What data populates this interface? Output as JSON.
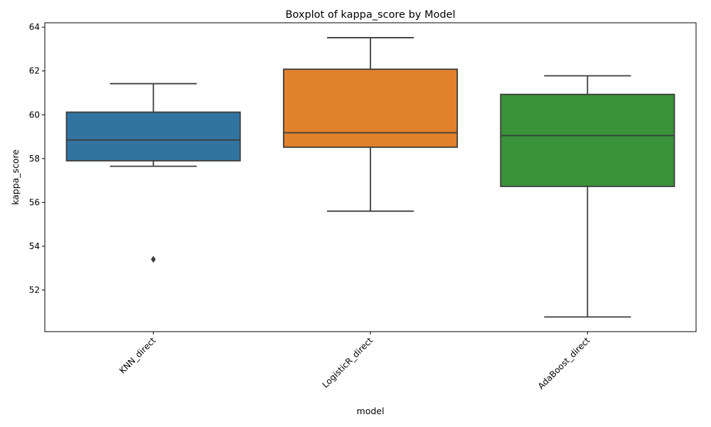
{
  "chart_data": {
    "type": "boxplot",
    "title": "Boxplot of kappa_score by Model",
    "xlabel": "model",
    "ylabel": "kappa_score",
    "ylim": [
      50.1,
      64.2
    ],
    "yticks": [
      52,
      54,
      56,
      58,
      60,
      62,
      64
    ],
    "grid": false,
    "xtick_rotation": 45,
    "categories": [
      "KNN_direct",
      "LogisticR_direct",
      "AdaBoost_direct"
    ],
    "series": [
      {
        "category": "KNN_direct",
        "color": "#3274a1",
        "min": 57.65,
        "q1": 57.9,
        "median": 58.85,
        "q3": 60.12,
        "max": 61.42,
        "outliers": [
          53.4
        ]
      },
      {
        "category": "LogisticR_direct",
        "color": "#e1812c",
        "min": 55.6,
        "q1": 58.52,
        "median": 59.18,
        "q3": 62.08,
        "max": 63.52,
        "outliers": []
      },
      {
        "category": "AdaBoost_direct",
        "color": "#3a923a",
        "min": 50.77,
        "q1": 56.73,
        "median": 59.05,
        "q3": 60.93,
        "max": 61.78,
        "outliers": []
      }
    ]
  }
}
